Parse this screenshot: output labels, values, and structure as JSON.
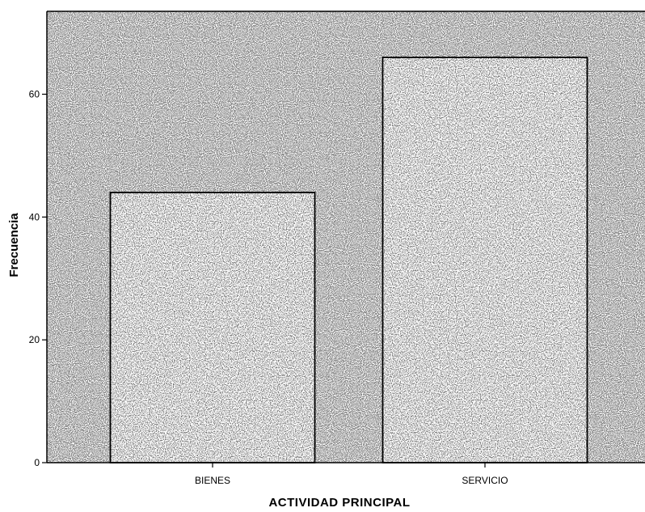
{
  "chart_data": {
    "type": "bar",
    "categories": [
      "BIENES",
      "SERVICIO"
    ],
    "values": [
      44,
      66
    ],
    "title": "",
    "xlabel": "ACTIVIDAD PRINCIPAL",
    "ylabel": "Frecuencia",
    "ylim": [
      0,
      73.5
    ],
    "yticks": [
      "0",
      "20",
      "40",
      "60"
    ],
    "grid": false,
    "legend": "none",
    "colors": {
      "background": "#ffffff",
      "plot_stipple": "#5a5a5a",
      "bar_stipple": "#3a3a3a",
      "axis": "#000000"
    }
  }
}
